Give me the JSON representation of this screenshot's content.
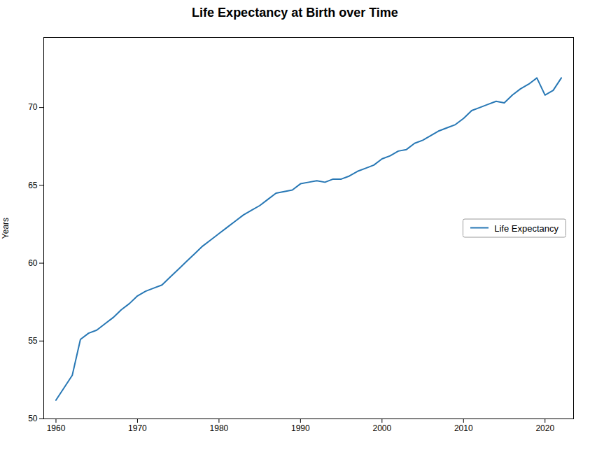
{
  "chart_data": {
    "type": "line",
    "title": "Life Expectancy at Birth over Time",
    "ylabel": "Years",
    "x": [
      1960,
      1961,
      1962,
      1963,
      1964,
      1965,
      1966,
      1967,
      1968,
      1969,
      1970,
      1971,
      1972,
      1973,
      1974,
      1975,
      1976,
      1977,
      1978,
      1979,
      1980,
      1981,
      1982,
      1983,
      1984,
      1985,
      1986,
      1987,
      1988,
      1989,
      1990,
      1991,
      1992,
      1993,
      1994,
      1995,
      1996,
      1997,
      1998,
      1999,
      2000,
      2001,
      2002,
      2003,
      2004,
      2005,
      2006,
      2007,
      2008,
      2009,
      2010,
      2011,
      2012,
      2013,
      2014,
      2015,
      2016,
      2017,
      2018,
      2019,
      2020,
      2021,
      2022
    ],
    "series": [
      {
        "name": "Life Expectancy",
        "color": "#2878b5",
        "values": [
          51.2,
          52.0,
          52.8,
          55.1,
          55.5,
          55.7,
          56.1,
          56.5,
          57.0,
          57.4,
          57.9,
          58.2,
          58.4,
          58.6,
          59.1,
          59.6,
          60.1,
          60.6,
          61.1,
          61.5,
          61.9,
          62.3,
          62.7,
          63.1,
          63.4,
          63.7,
          64.1,
          64.5,
          64.6,
          64.7,
          65.1,
          65.2,
          65.3,
          65.2,
          65.4,
          65.4,
          65.6,
          65.9,
          66.1,
          66.3,
          66.7,
          66.9,
          67.2,
          67.3,
          67.7,
          67.9,
          68.2,
          68.5,
          68.7,
          68.9,
          69.3,
          69.8,
          70.0,
          70.2,
          70.4,
          70.3,
          70.8,
          71.2,
          71.5,
          71.9,
          70.8,
          71.1,
          71.9
        ]
      }
    ],
    "xlim": [
      1958.5,
      2023.5
    ],
    "ylim": [
      50,
      74.5
    ],
    "xticks": [
      1960,
      1970,
      1980,
      1990,
      2000,
      2010,
      2020
    ],
    "yticks": [
      50,
      55,
      60,
      65,
      70
    ],
    "legend": "center right",
    "grid": false
  }
}
